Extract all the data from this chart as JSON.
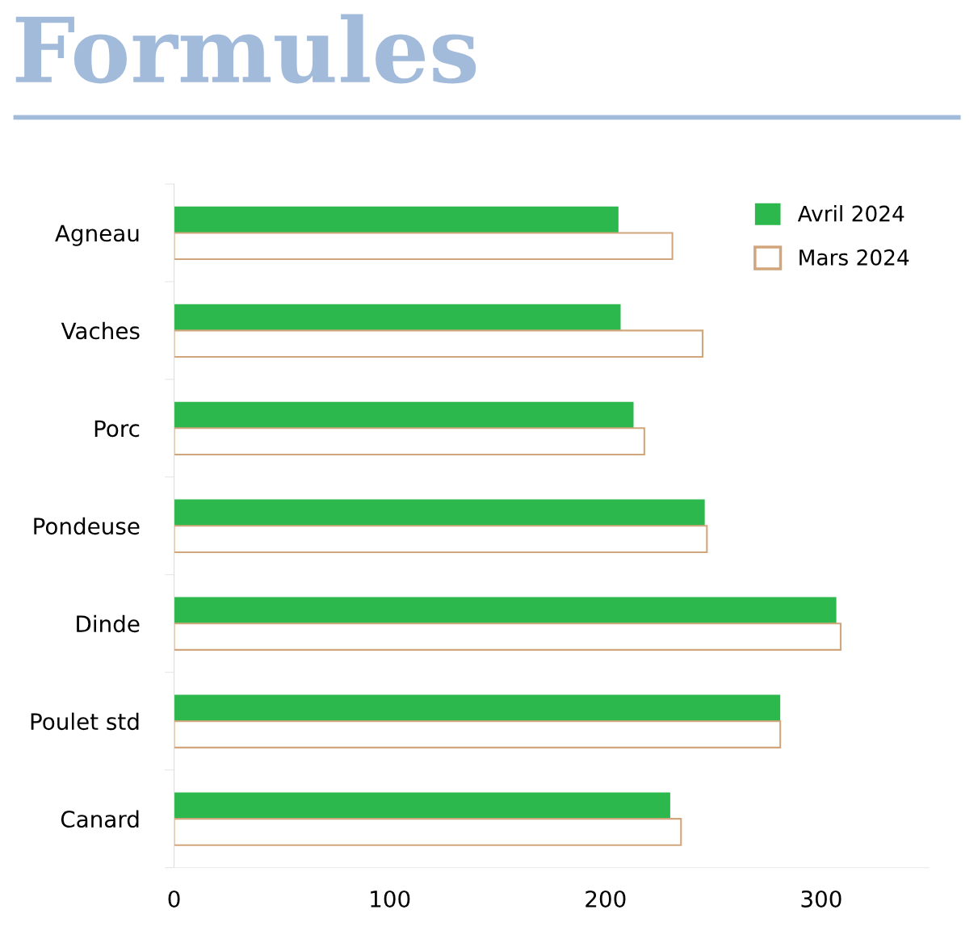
{
  "chart_data": {
    "type": "bar",
    "orientation": "horizontal",
    "title": "Formules",
    "categories": [
      "Agneau",
      "Vaches",
      "Porc",
      "Pondeuse",
      "Dinde",
      "Poulet std",
      "Canard"
    ],
    "series": [
      {
        "name": "Avril 2024",
        "color": "#2db84d",
        "values": [
          206,
          207,
          213,
          246,
          307,
          281,
          230
        ]
      },
      {
        "name": "Mars 2024",
        "color": "#d2a67c",
        "values": [
          231,
          245,
          218,
          247,
          309,
          281,
          235
        ]
      }
    ],
    "xlim": [
      0,
      350
    ],
    "xticks": [
      0,
      100,
      200,
      300
    ],
    "grid": false,
    "legend": "top right"
  }
}
